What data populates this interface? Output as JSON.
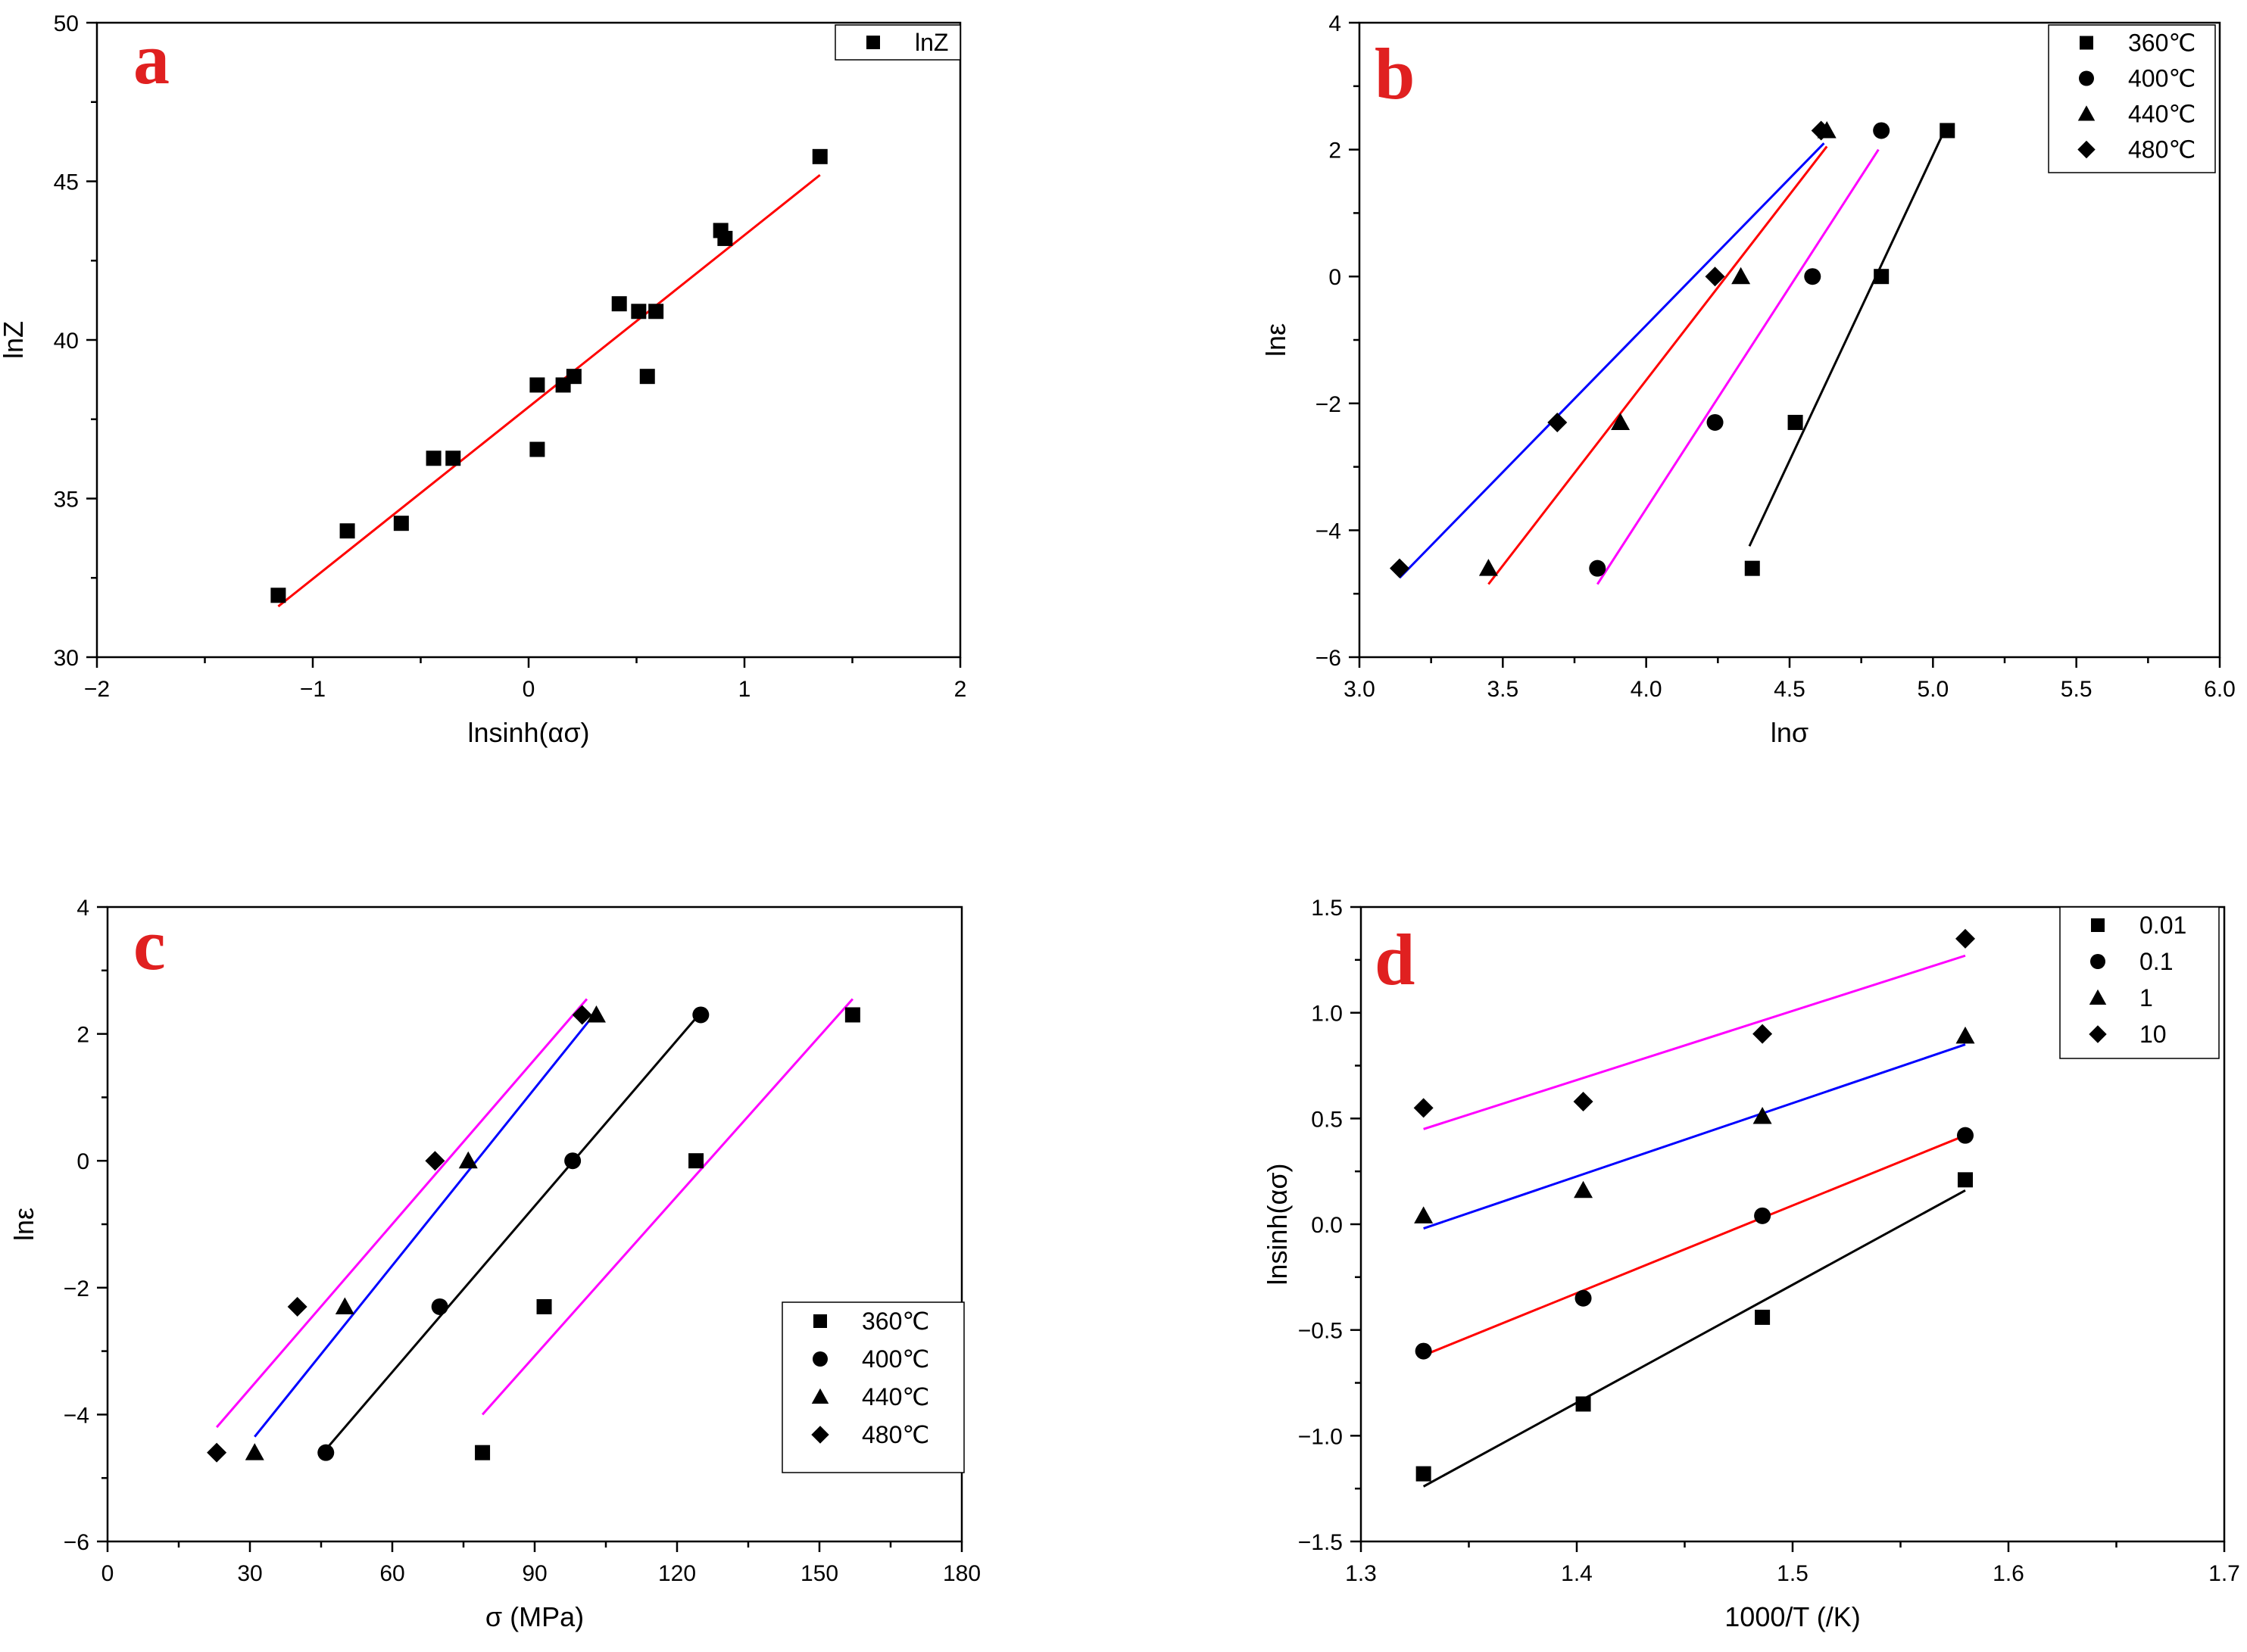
{
  "chart_data": [
    {
      "panel": "a",
      "type": "scatter",
      "xlabel": "lnsinh(ασ)",
      "ylabel": "lnZ",
      "xlim": [
        -2,
        2
      ],
      "ylim": [
        30,
        50
      ],
      "xticks": [
        -2,
        -1,
        0,
        1,
        2
      ],
      "xtick_labels": [
        "−2",
        "−1",
        "0",
        "1",
        "2"
      ],
      "yticks": [
        30,
        35,
        40,
        45,
        50
      ],
      "ytick_labels": [
        "30",
        "35",
        "40",
        "45",
        "50"
      ],
      "grid": false,
      "legend_position": "top-right",
      "series": [
        {
          "name": "lnZ",
          "marker": "square",
          "points": [
            [
              -1.16,
              31.95
            ],
            [
              -0.84,
              33.98
            ],
            [
              -0.59,
              34.22
            ],
            [
              -0.44,
              36.27
            ],
            [
              -0.35,
              36.27
            ],
            [
              0.04,
              36.55
            ],
            [
              0.04,
              38.58
            ],
            [
              0.16,
              38.58
            ],
            [
              0.21,
              38.85
            ],
            [
              0.42,
              41.14
            ],
            [
              0.51,
              40.9
            ],
            [
              0.55,
              38.85
            ],
            [
              0.59,
              40.9
            ],
            [
              0.89,
              43.45
            ],
            [
              0.91,
              43.2
            ],
            [
              1.35,
              45.78
            ]
          ],
          "fit": {
            "x": [
              -1.16,
              1.35
            ],
            "y": [
              31.6,
              45.2
            ],
            "color": "#ff0000"
          }
        }
      ]
    },
    {
      "panel": "b",
      "type": "scatter",
      "xlabel": "lnσ",
      "ylabel": "lnε",
      "xlim": [
        3.0,
        6.0
      ],
      "ylim": [
        -6,
        4
      ],
      "xticks": [
        3.0,
        3.5,
        4.0,
        4.5,
        5.0,
        5.5,
        6.0
      ],
      "xtick_labels": [
        "3.0",
        "3.5",
        "4.0",
        "4.5",
        "5.0",
        "5.5",
        "6.0"
      ],
      "yticks": [
        -6,
        -4,
        -2,
        0,
        2,
        4
      ],
      "ytick_labels": [
        "−6",
        "−4",
        "−2",
        "0",
        "2",
        "4"
      ],
      "grid": false,
      "legend_position": "top-right",
      "series": [
        {
          "name": "360℃",
          "marker": "square",
          "points": [
            [
              4.37,
              -4.6
            ],
            [
              4.52,
              -2.3
            ],
            [
              4.82,
              0
            ],
            [
              5.05,
              2.3
            ]
          ],
          "fit": {
            "x": [
              4.36,
              5.04
            ],
            "y": [
              -4.25,
              2.3
            ],
            "color": "#000000"
          }
        },
        {
          "name": "400℃",
          "marker": "circle",
          "points": [
            [
              3.83,
              -4.6
            ],
            [
              4.24,
              -2.3
            ],
            [
              4.58,
              0
            ],
            [
              4.82,
              2.3
            ]
          ],
          "fit": {
            "x": [
              3.83,
              4.81
            ],
            "y": [
              -4.85,
              2.0
            ],
            "color": "#ff00ff"
          }
        },
        {
          "name": "440℃",
          "marker": "triangle",
          "points": [
            [
              3.45,
              -4.6
            ],
            [
              3.91,
              -2.3
            ],
            [
              4.33,
              0
            ],
            [
              4.63,
              2.3
            ]
          ],
          "fit": {
            "x": [
              3.45,
              4.63
            ],
            "y": [
              -4.85,
              2.05
            ],
            "color": "#ff0000"
          }
        },
        {
          "name": "480℃",
          "marker": "diamond",
          "points": [
            [
              3.14,
              -4.6
            ],
            [
              3.69,
              -2.3
            ],
            [
              4.24,
              0
            ],
            [
              4.61,
              2.3
            ]
          ],
          "fit": {
            "x": [
              3.14,
              4.62
            ],
            "y": [
              -4.75,
              2.1
            ],
            "color": "#0000ff"
          }
        }
      ]
    },
    {
      "panel": "c",
      "type": "scatter",
      "xlabel": "σ (MPa)",
      "ylabel": "lnε",
      "xlim": [
        0,
        180
      ],
      "ylim": [
        -6,
        4
      ],
      "xticks": [
        0,
        30,
        60,
        90,
        120,
        150,
        180
      ],
      "xtick_labels": [
        "0",
        "30",
        "60",
        "90",
        "120",
        "150",
        "180"
      ],
      "yticks": [
        -6,
        -4,
        -2,
        0,
        2,
        4
      ],
      "ytick_labels": [
        "−6",
        "−4",
        "−2",
        "0",
        "2",
        "4"
      ],
      "grid": false,
      "legend_position": "bottom-right",
      "series": [
        {
          "name": "360℃",
          "marker": "square",
          "points": [
            [
              79,
              -4.6
            ],
            [
              92,
              -2.3
            ],
            [
              124,
              0
            ],
            [
              157,
              2.3
            ]
          ],
          "fit": {
            "x": [
              79,
              157
            ],
            "y": [
              -4.0,
              2.55
            ],
            "color": "#ff00ff"
          }
        },
        {
          "name": "400℃",
          "marker": "circle",
          "points": [
            [
              46,
              -4.6
            ],
            [
              70,
              -2.3
            ],
            [
              98,
              0
            ],
            [
              125,
              2.3
            ]
          ],
          "fit": {
            "x": [
              46,
              124
            ],
            "y": [
              -4.55,
              2.25
            ],
            "color": "#000000"
          }
        },
        {
          "name": "440℃",
          "marker": "triangle",
          "points": [
            [
              31,
              -4.6
            ],
            [
              50,
              -2.3
            ],
            [
              76,
              0
            ],
            [
              103,
              2.3
            ]
          ],
          "fit": {
            "x": [
              31,
              103
            ],
            "y": [
              -4.35,
              2.35
            ],
            "color": "#0000ff"
          }
        },
        {
          "name": "480℃",
          "marker": "diamond",
          "points": [
            [
              23,
              -4.6
            ],
            [
              40,
              -2.3
            ],
            [
              69,
              0
            ],
            [
              100,
              2.3
            ]
          ],
          "fit": {
            "x": [
              23,
              101
            ],
            "y": [
              -4.2,
              2.55
            ],
            "color": "#ff00ff"
          }
        }
      ]
    },
    {
      "panel": "d",
      "type": "scatter",
      "xlabel": "1000/T (/K)",
      "ylabel": "lnsinh(ασ)",
      "xlim": [
        1.3,
        1.7
      ],
      "ylim": [
        -1.5,
        1.5
      ],
      "xticks": [
        1.3,
        1.4,
        1.5,
        1.6,
        1.7
      ],
      "xtick_labels": [
        "1.3",
        "1.4",
        "1.5",
        "1.6",
        "1.7"
      ],
      "yticks": [
        -1.5,
        -1.0,
        -0.5,
        0.0,
        0.5,
        1.0,
        1.5
      ],
      "ytick_labels": [
        "−1.5",
        "−1.0",
        "−0.5",
        "0.0",
        "0.5",
        "1.0",
        "1.5"
      ],
      "grid": false,
      "legend_position": "top-right",
      "series": [
        {
          "name": "0.01",
          "marker": "square",
          "points": [
            [
              1.329,
              -1.18
            ],
            [
              1.403,
              -0.85
            ],
            [
              1.486,
              -0.44
            ],
            [
              1.58,
              0.21
            ]
          ],
          "fit": {
            "x": [
              1.329,
              1.58
            ],
            "y": [
              -1.24,
              0.16
            ],
            "color": "#000000"
          }
        },
        {
          "name": "0.1",
          "marker": "circle",
          "points": [
            [
              1.329,
              -0.6
            ],
            [
              1.403,
              -0.35
            ],
            [
              1.486,
              0.04
            ],
            [
              1.58,
              0.42
            ]
          ],
          "fit": {
            "x": [
              1.329,
              1.58
            ],
            "y": [
              -0.62,
              0.42
            ],
            "color": "#ff0000"
          }
        },
        {
          "name": "1",
          "marker": "triangle",
          "points": [
            [
              1.329,
              0.04
            ],
            [
              1.403,
              0.16
            ],
            [
              1.486,
              0.51
            ],
            [
              1.58,
              0.89
            ]
          ],
          "fit": {
            "x": [
              1.329,
              1.58
            ],
            "y": [
              -0.02,
              0.85
            ],
            "color": "#0000ff"
          }
        },
        {
          "name": "10",
          "marker": "diamond",
          "points": [
            [
              1.329,
              0.55
            ],
            [
              1.403,
              0.58
            ],
            [
              1.486,
              0.9
            ],
            [
              1.58,
              1.35
            ]
          ],
          "fit": {
            "x": [
              1.329,
              1.58
            ],
            "y": [
              0.45,
              1.27
            ],
            "color": "#ff00ff"
          }
        }
      ]
    }
  ]
}
